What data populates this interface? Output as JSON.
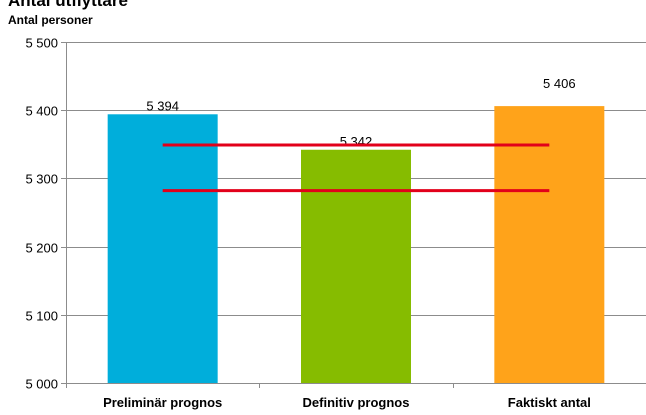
{
  "chart_data": {
    "type": "bar",
    "title": "Antal utflyttare",
    "xlabel": "",
    "ylabel": "Antal personer",
    "categories": [
      "Preliminär prognos",
      "Definitiv prognos",
      "Faktiskt antal"
    ],
    "values": [
      5394,
      5342,
      5406
    ],
    "value_labels": [
      "5 394",
      "5 342",
      "5 406"
    ],
    "bar_colors": [
      "#00aedb",
      "#86bc00",
      "#ffa31a"
    ],
    "ylim": [
      5000,
      5500
    ],
    "yticks": [
      5000,
      5100,
      5200,
      5300,
      5400,
      5500
    ],
    "ytick_labels": [
      "5 000",
      "5 100",
      "5 200",
      "5 300",
      "5 400",
      "5 500"
    ],
    "grid": true,
    "reference_lines": [
      {
        "y": 5349,
        "color": "#e2001a"
      },
      {
        "y": 5282,
        "color": "#e2001a"
      }
    ]
  }
}
